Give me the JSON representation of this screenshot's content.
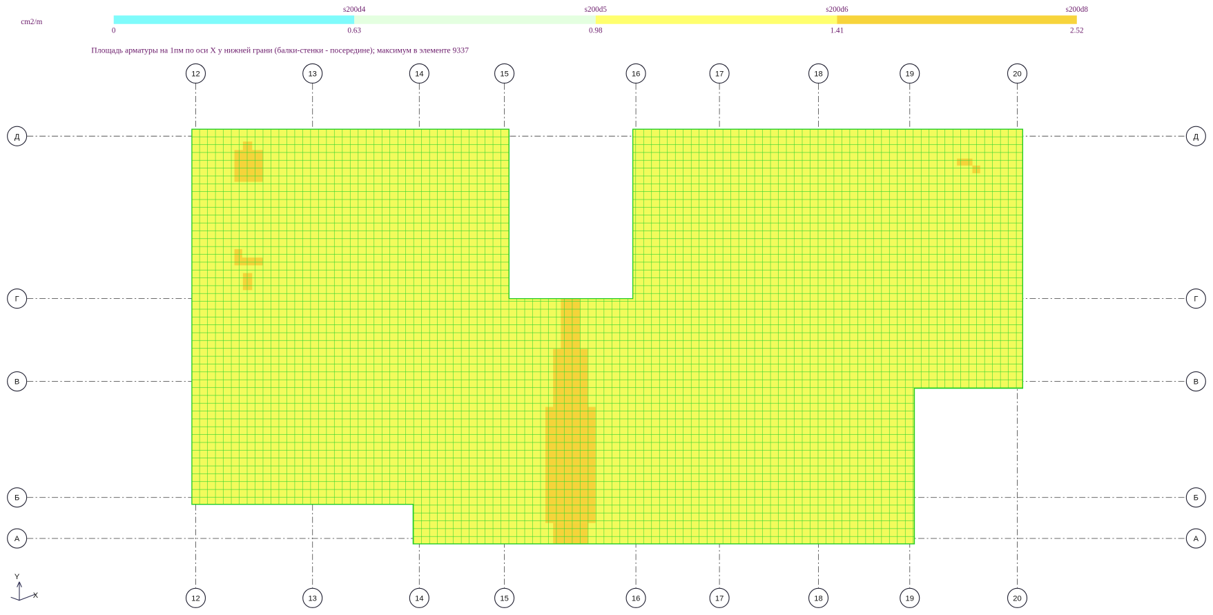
{
  "legend": {
    "unit": "cm2/m",
    "items": [
      {
        "name": "s200d4",
        "color": "#7ffbfb"
      },
      {
        "name": "s200d5",
        "color": "#e4ffe0"
      },
      {
        "name": "s200d6",
        "color": "#ffff6e"
      },
      {
        "name": "s200d8",
        "color": "#f7d43c"
      }
    ],
    "ticks": [
      0,
      0.63,
      0.98,
      1.41,
      2.52
    ]
  },
  "title": "Площадь арматуры на 1пм по оси X у нижней грани (балки-стенки - посередине); максимум в элементе 9337",
  "columns": [
    "12",
    "13",
    "14",
    "15",
    "16",
    "17",
    "18",
    "19",
    "20"
  ],
  "rows": [
    "Д",
    "Г",
    "В",
    "Б",
    "А"
  ],
  "ucs": {
    "y": "Y",
    "x": "X"
  }
}
